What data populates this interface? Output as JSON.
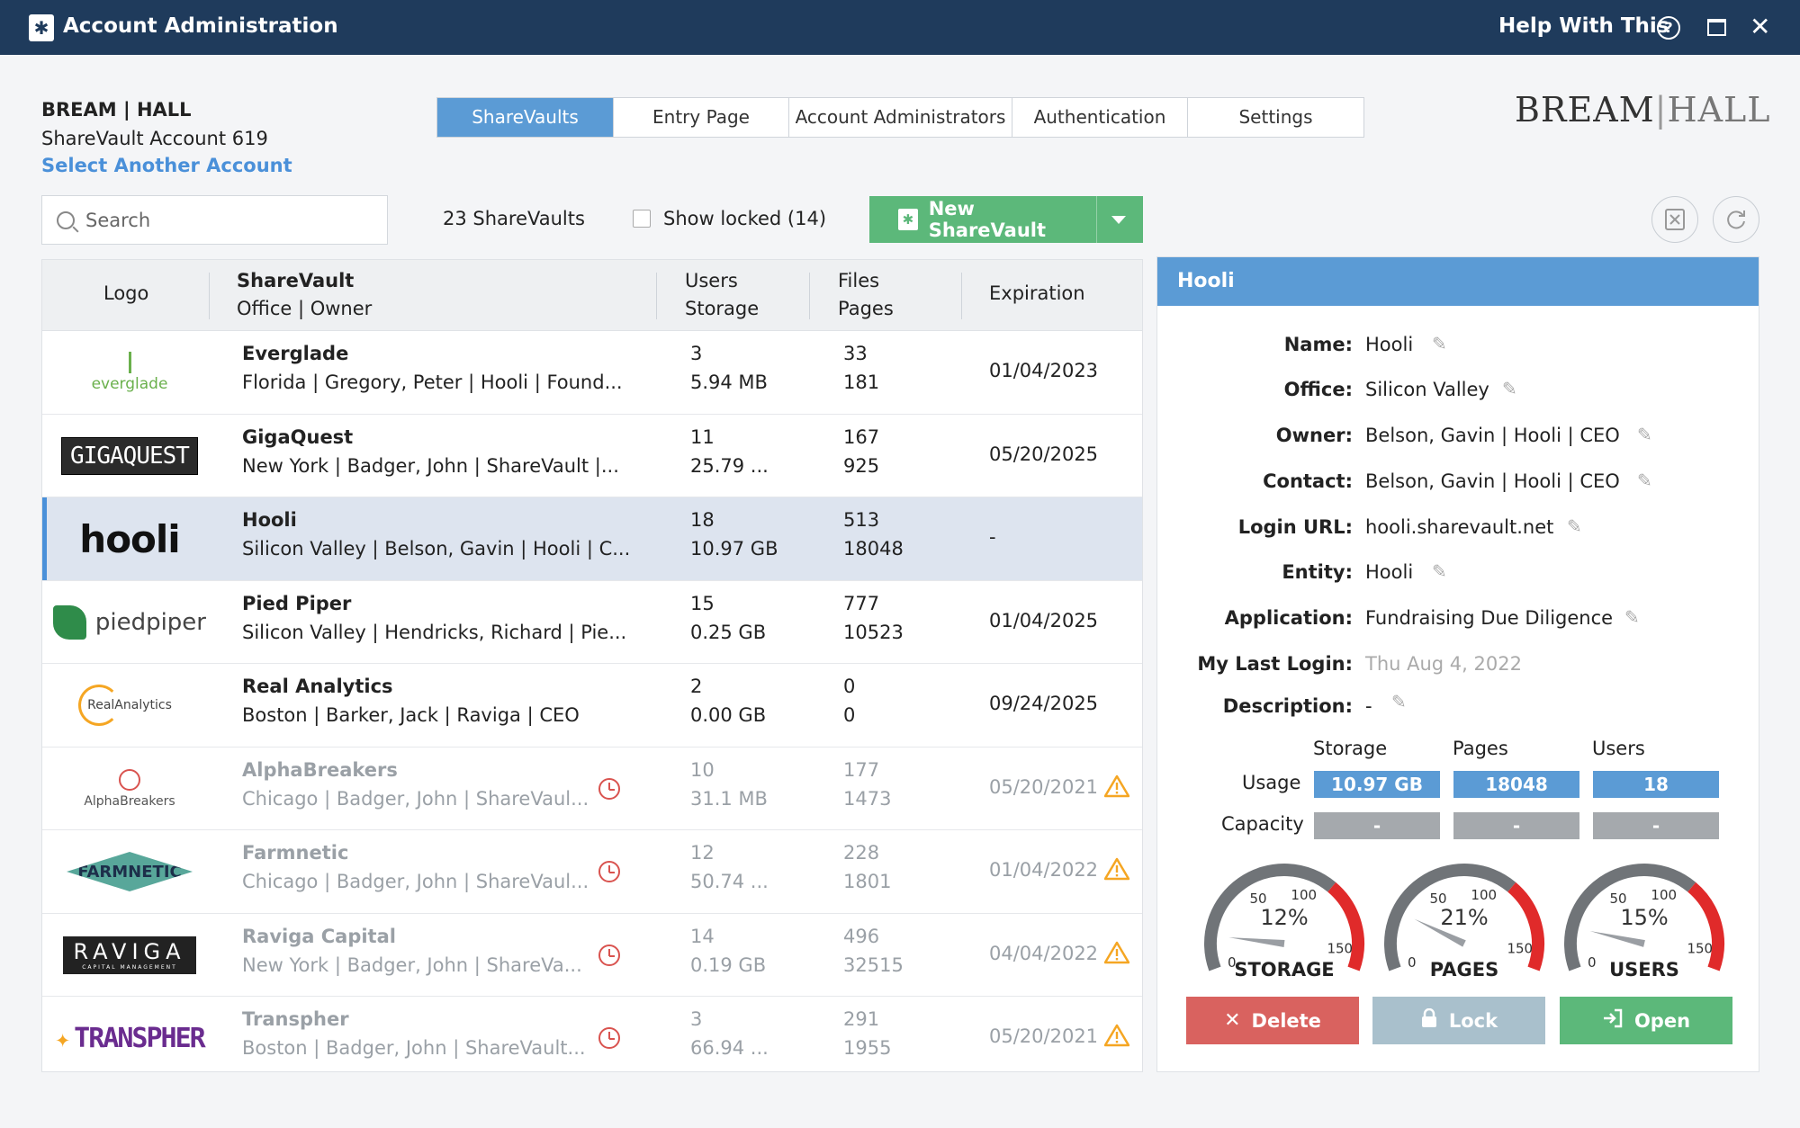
{
  "titlebar": {
    "title": "Account Administration",
    "help": "Help With This",
    "help_glyph": "?",
    "close_glyph": "✕"
  },
  "account": {
    "name": "BREAM | HALL",
    "number": "ShareVault Account 619",
    "select_link": "Select Another Account"
  },
  "brand_logo": {
    "left": "BREAM",
    "sep": "|",
    "right": "HALL"
  },
  "tabs": [
    {
      "label": "ShareVaults",
      "active": true
    },
    {
      "label": "Entry Page",
      "active": false
    },
    {
      "label": "Account Administrators",
      "active": false
    },
    {
      "label": "Authentication",
      "active": false
    },
    {
      "label": "Settings",
      "active": false
    }
  ],
  "toolbar": {
    "search_placeholder": "Search",
    "count": "23 ShareVaults",
    "show_locked": "Show locked (14)",
    "new_button": "New ShareVault",
    "icons": [
      "excel-export-icon",
      "refresh-icon"
    ]
  },
  "table": {
    "headers": {
      "logo": "Logo",
      "sharevault": "ShareVault",
      "office_owner": "Office | Owner",
      "users": "Users",
      "storage": "Storage",
      "files": "Files",
      "pages": "Pages",
      "expiration": "Expiration"
    },
    "rows": [
      {
        "logo": "everglade",
        "name": "Everglade",
        "sub": "Florida | Gregory, Peter | Hooli | Found...",
        "users": "3",
        "storage": "5.94 MB",
        "files": "33",
        "pages": "181",
        "expiration": "01/04/2023",
        "locked": false,
        "selected": false
      },
      {
        "logo": "GIGAQUEST",
        "name": "GigaQuest",
        "sub": "New York | Badger, John | ShareVault |...",
        "users": "11",
        "storage": "25.79 ...",
        "files": "167",
        "pages": "925",
        "expiration": "05/20/2025",
        "locked": false,
        "selected": false
      },
      {
        "logo": "hooli",
        "name": "Hooli",
        "sub": "Silicon Valley | Belson, Gavin | Hooli | C...",
        "users": "18",
        "storage": "10.97 GB",
        "files": "513",
        "pages": "18048",
        "expiration": "-",
        "locked": false,
        "selected": true
      },
      {
        "logo": "piedpiper",
        "name": "Pied Piper",
        "sub": "Silicon Valley | Hendricks, Richard | Pie...",
        "users": "15",
        "storage": "0.25 GB",
        "files": "777",
        "pages": "10523",
        "expiration": "01/04/2025",
        "locked": false,
        "selected": false
      },
      {
        "logo": "RealAnalytics",
        "name": "Real Analytics",
        "sub": "Boston | Barker, Jack | Raviga | CEO",
        "users": "2",
        "storage": "0.00 GB",
        "files": "0",
        "pages": "0",
        "expiration": "09/24/2025",
        "locked": false,
        "selected": false
      },
      {
        "logo": "AlphaBreakers",
        "name": "AlphaBreakers",
        "sub": "Chicago | Badger, John | ShareVaul...",
        "users": "10",
        "storage": "31.1 MB",
        "files": "177",
        "pages": "1473",
        "expiration": "05/20/2021",
        "locked": true,
        "selected": false
      },
      {
        "logo": "FARMNETIC",
        "name": "Farmnetic",
        "sub": "Chicago | Badger, John | ShareVaul...",
        "users": "12",
        "storage": "50.74 ...",
        "files": "228",
        "pages": "1801",
        "expiration": "01/04/2022",
        "locked": true,
        "selected": false
      },
      {
        "logo": "RAVIGA",
        "logo_sub": "CAPITAL MANAGEMENT",
        "name": "Raviga Capital",
        "sub": "New York | Badger, John | ShareVa...",
        "users": "14",
        "storage": "0.19 GB",
        "files": "496",
        "pages": "32515",
        "expiration": "04/04/2022",
        "locked": true,
        "selected": false
      },
      {
        "logo": "TRANSPHER",
        "name": "Transpher",
        "sub": "Boston | Badger, John | ShareVault...",
        "users": "3",
        "storage": "66.94 ...",
        "files": "291",
        "pages": "1955",
        "expiration": "05/20/2021",
        "locked": true,
        "selected": false
      }
    ]
  },
  "detail": {
    "title": "Hooli",
    "fields": [
      {
        "label": "Name:",
        "value": "Hooli",
        "editable": true
      },
      {
        "label": "Office:",
        "value": "Silicon Valley",
        "editable": true
      },
      {
        "label": "Owner:",
        "value": "Belson, Gavin | Hooli | CEO",
        "editable": true
      },
      {
        "label": "Contact:",
        "value": "Belson, Gavin | Hooli | CEO",
        "editable": true
      },
      {
        "label": "Login URL:",
        "value": "hooli.sharevault.net",
        "editable": true
      },
      {
        "label": "Entity:",
        "value": "Hooli",
        "editable": true
      },
      {
        "label": "Application:",
        "value": "Fundraising Due Diligence",
        "editable": true
      },
      {
        "label": "My Last Login:",
        "value": "Thu Aug 4, 2022",
        "editable": false
      },
      {
        "label": "Description:",
        "value": "-",
        "editable": true
      }
    ],
    "usage": {
      "col_headers": [
        "Storage",
        "Pages",
        "Users"
      ],
      "usage_label": "Usage",
      "capacity_label": "Capacity",
      "usage_values": [
        "10.97 GB",
        "18048",
        "18"
      ],
      "capacity_values": [
        "-",
        "-",
        "-"
      ]
    },
    "gauges": [
      {
        "name": "STORAGE",
        "percent": 12,
        "label": "12%",
        "ticks": [
          "0",
          "50",
          "100",
          "150"
        ]
      },
      {
        "name": "PAGES",
        "percent": 21,
        "label": "21%",
        "ticks": [
          "0",
          "50",
          "100",
          "150"
        ]
      },
      {
        "name": "USERS",
        "percent": 15,
        "label": "15%",
        "ticks": [
          "0",
          "50",
          "100",
          "150"
        ]
      }
    ],
    "actions": {
      "delete": "Delete",
      "lock": "Lock",
      "open": "Open"
    }
  },
  "colors": {
    "accent": "#5b9bd5",
    "titlebar": "#1f3b5c",
    "success": "#5cb87a",
    "danger": "#d9625f",
    "warning": "#f5a623"
  }
}
